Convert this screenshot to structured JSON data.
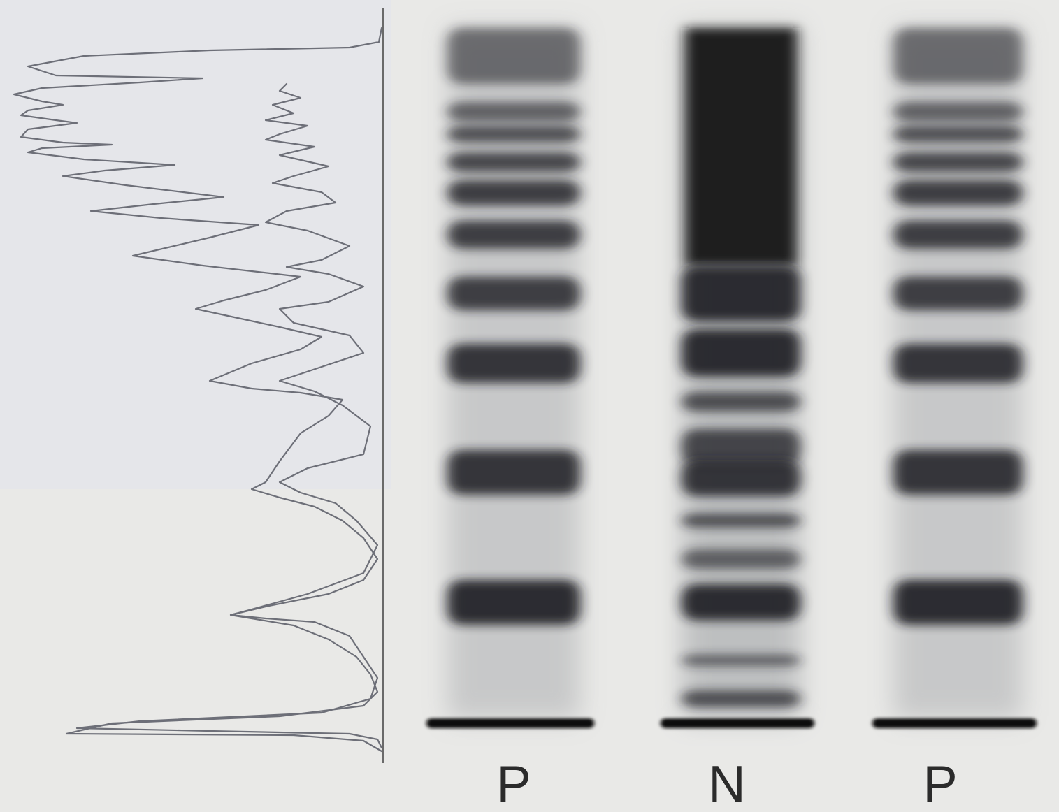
{
  "lanes": [
    {
      "label": "P"
    },
    {
      "label": "N"
    },
    {
      "label": "P"
    }
  ]
}
